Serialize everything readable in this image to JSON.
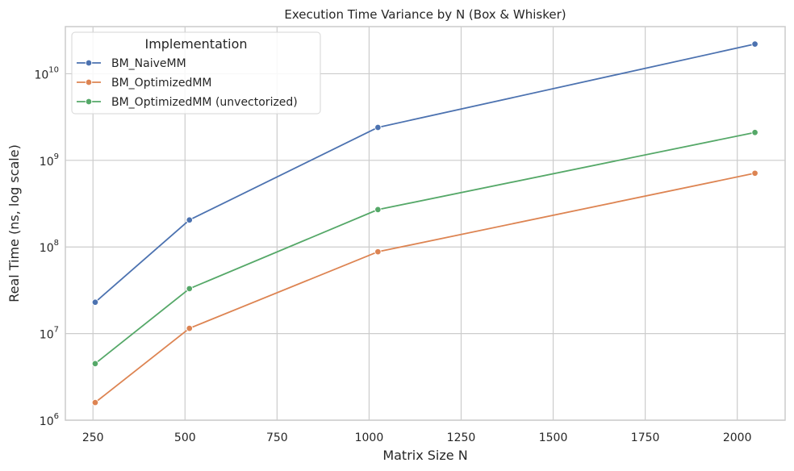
{
  "chart_data": {
    "type": "line",
    "title": "Execution Time Variance by N (Box & Whisker)",
    "xlabel": "Matrix Size N",
    "ylabel": "Real Time (ns, log scale)",
    "xlim": [
      175,
      2130
    ],
    "ylim": [
      1000000,
      35000000000
    ],
    "yscale": "log",
    "x_ticks": [
      250,
      500,
      750,
      1000,
      1250,
      1500,
      1750,
      2000
    ],
    "y_ticks": [
      {
        "value": 1000000,
        "base": "10",
        "exp": "6"
      },
      {
        "value": 10000000,
        "base": "10",
        "exp": "7"
      },
      {
        "value": 100000000,
        "base": "10",
        "exp": "8"
      },
      {
        "value": 1000000000,
        "base": "10",
        "exp": "9"
      },
      {
        "value": 10000000000,
        "base": "10",
        "exp": "10"
      }
    ],
    "grid": true,
    "legend": {
      "title": "Implementation",
      "position": "top-left"
    },
    "x": [
      256,
      512,
      1024,
      2048
    ],
    "series": [
      {
        "name": "BM_NaiveMM",
        "color": "#4c72b0",
        "values": [
          23000000,
          205000000,
          2400000000,
          22000000000
        ]
      },
      {
        "name": "BM_OptimizedMM",
        "color": "#dd8452",
        "values": [
          1600000,
          11500000,
          88000000,
          710000000
        ]
      },
      {
        "name": "BM_OptimizedMM (unvectorized)",
        "color": "#55a868",
        "values": [
          4500000,
          33000000,
          270000000,
          2100000000
        ]
      }
    ]
  }
}
